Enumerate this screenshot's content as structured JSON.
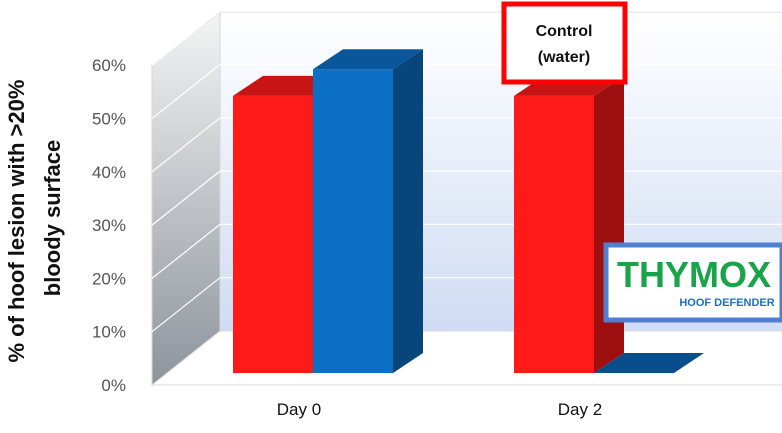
{
  "chart_data": {
    "type": "bar",
    "title": "",
    "ylabel_lines": [
      "% of hoof lesion with >20%",
      "bloody surface"
    ],
    "xlabel": "",
    "categories": [
      "Day 0",
      "Day 2"
    ],
    "series": [
      {
        "color": "#ff1a1a",
        "values": [
          52,
          52
        ]
      },
      {
        "color": "#0b6fc6",
        "values": [
          57,
          0
        ]
      }
    ],
    "ylim": [
      0,
      60
    ],
    "yticks": [
      "0%",
      "10%",
      "20%",
      "30%",
      "40%",
      "50%",
      "60%"
    ],
    "grid": true,
    "annotation_lines": [
      "Control",
      "(water)"
    ],
    "annotation_color": "#ff0000"
  },
  "logo": {
    "main": "THYMOX",
    "sub": "HOOF DEFENDER",
    "border_color": "#4f7fd0",
    "main_color": "#19a44a",
    "sub_color": "#1e6fc1"
  }
}
